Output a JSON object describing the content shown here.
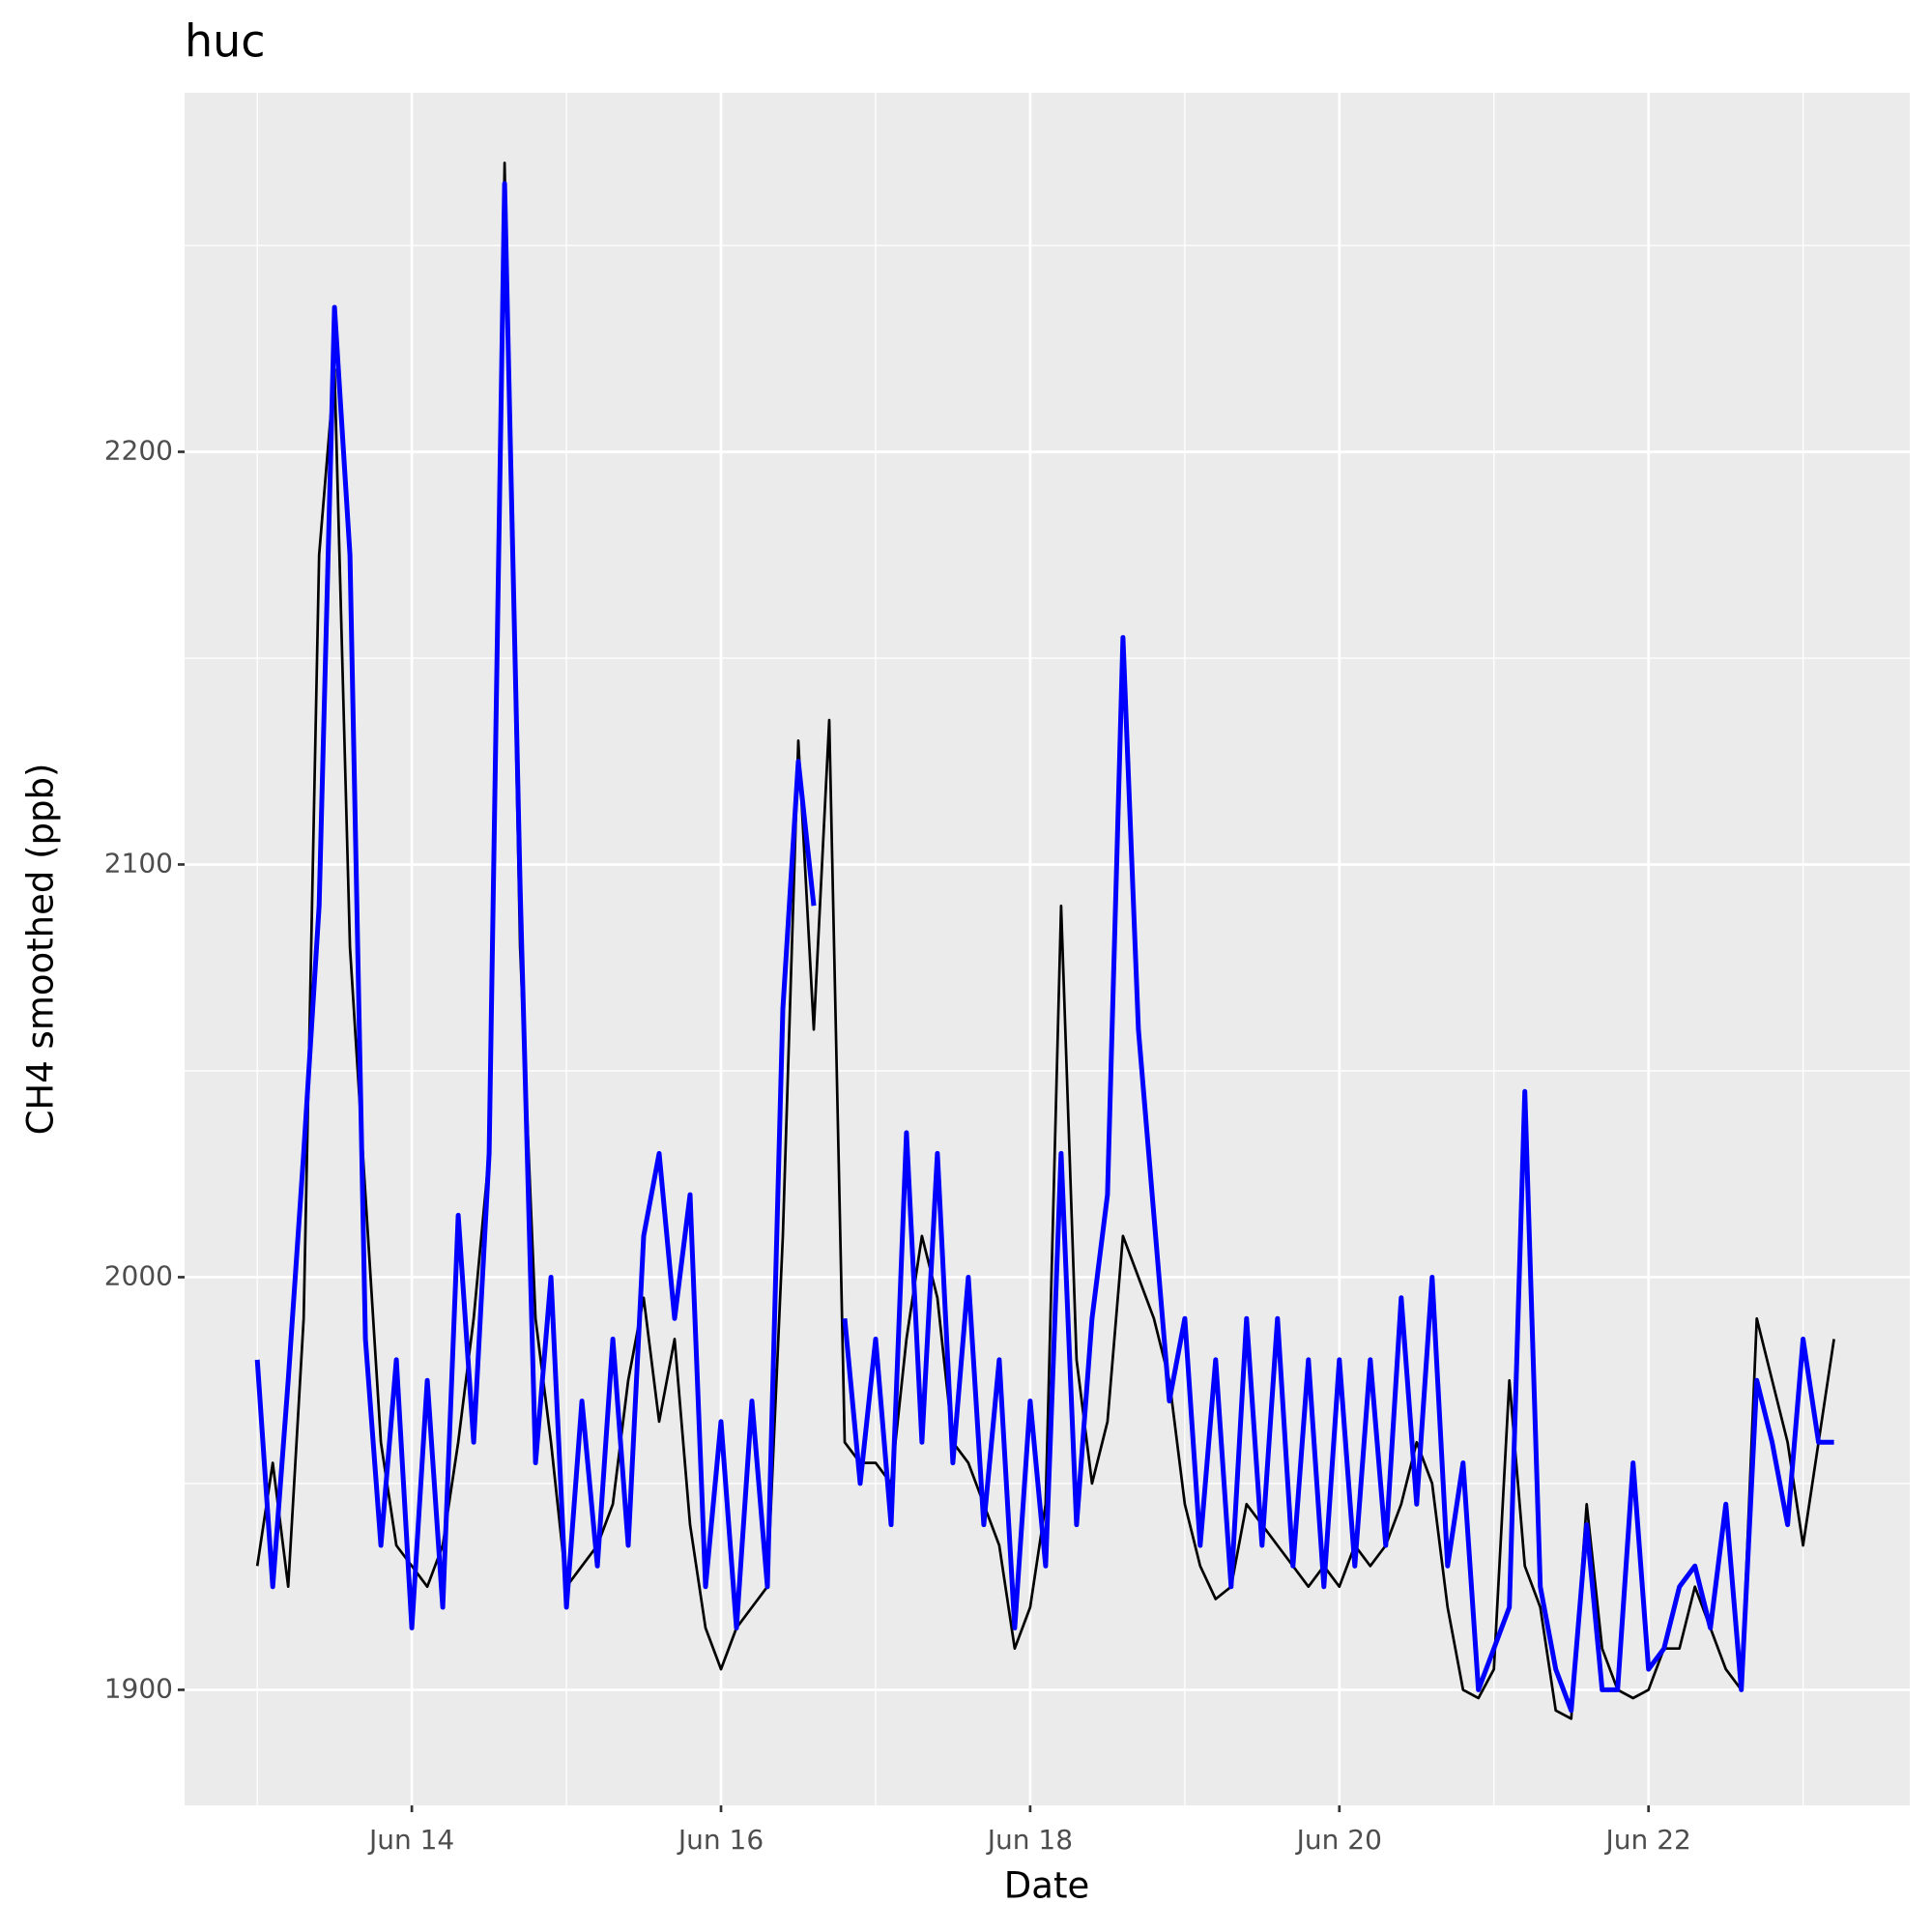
{
  "chart_data": {
    "type": "line",
    "title": "huc",
    "xlabel": "Date",
    "ylabel": "CH4 smoothed (ppb)",
    "x": [
      13.0,
      13.1,
      13.2,
      13.3,
      13.4,
      13.5,
      13.6,
      13.7,
      13.8,
      13.9,
      14.0,
      14.1,
      14.2,
      14.3,
      14.4,
      14.5,
      14.6,
      14.7,
      14.8,
      14.9,
      15.0,
      15.1,
      15.2,
      15.3,
      15.4,
      15.5,
      15.6,
      15.7,
      15.8,
      15.9,
      16.0,
      16.1,
      16.2,
      16.3,
      16.4,
      16.5,
      16.6,
      16.7,
      16.8,
      16.9,
      17.0,
      17.1,
      17.2,
      17.3,
      17.4,
      17.5,
      17.6,
      17.7,
      17.8,
      17.9,
      18.0,
      18.1,
      18.2,
      18.3,
      18.4,
      18.5,
      18.6,
      18.7,
      18.8,
      18.9,
      19.0,
      19.1,
      19.2,
      19.3,
      19.4,
      19.5,
      19.6,
      19.7,
      19.8,
      19.9,
      20.0,
      20.1,
      20.2,
      20.3,
      20.4,
      20.5,
      20.6,
      20.7,
      20.8,
      20.9,
      21.0,
      21.1,
      21.2,
      21.3,
      21.4,
      21.5,
      21.6,
      21.7,
      21.8,
      21.9,
      22.0,
      22.1,
      22.2,
      22.3,
      22.4,
      22.5,
      22.6,
      22.7,
      22.8,
      22.9,
      23.0,
      23.1,
      23.2
    ],
    "series": [
      {
        "color": "#000000",
        "values": [
          1930,
          1955,
          1925,
          1990,
          2175,
          2220,
          2080,
          2020,
          1960,
          1935,
          1930,
          1925,
          1935,
          1960,
          1990,
          2030,
          2270,
          2080,
          1990,
          1960,
          1925,
          1930,
          1935,
          1945,
          1975,
          1995,
          1965,
          1985,
          1940,
          1915,
          1905,
          1915,
          1920,
          1925,
          2010,
          2130,
          2060,
          2135,
          1960,
          1955,
          1955,
          1950,
          1985,
          2010,
          1995,
          1960,
          1955,
          1945,
          1935,
          1910,
          1920,
          1945,
          2090,
          1980,
          1950,
          1965,
          2010,
          2000,
          1990,
          1975,
          1945,
          1930,
          1922,
          1925,
          1945,
          1940,
          1935,
          1930,
          1925,
          1930,
          1925,
          1935,
          1930,
          1935,
          1945,
          1960,
          1950,
          1920,
          1900,
          1898,
          1905,
          1975,
          1930,
          1920,
          1895,
          1893,
          1945,
          1910,
          1900,
          1898,
          1900,
          1910,
          1910,
          1925,
          1915,
          1905,
          1900,
          1990,
          1975,
          1960,
          1935,
          1960,
          1985
        ]
      },
      {
        "color": "#0000ff",
        "values": [
          1980,
          1925,
          1975,
          2030,
          2090,
          2235,
          2175,
          1985,
          1935,
          1980,
          1915,
          1975,
          1920,
          2015,
          1960,
          2030,
          2265,
          2095,
          1955,
          2000,
          1920,
          1970,
          1930,
          1985,
          1935,
          2010,
          2030,
          1990,
          2020,
          1925,
          1965,
          1915,
          1970,
          1925,
          2065,
          2125,
          2090,
          null,
          1990,
          1950,
          1985,
          1940,
          2035,
          1960,
          2030,
          1955,
          2000,
          1940,
          1980,
          1915,
          1970,
          1930,
          2030,
          1940,
          1990,
          2020,
          2155,
          2060,
          2015,
          1970,
          1990,
          1935,
          1980,
          1925,
          1990,
          1935,
          1990,
          1930,
          1980,
          1925,
          1980,
          1930,
          1980,
          1935,
          1995,
          1945,
          2000,
          1930,
          1955,
          1900,
          1910,
          1920,
          2045,
          1925,
          1905,
          1895,
          1940,
          1900,
          1900,
          1955,
          1905,
          1910,
          1925,
          1930,
          1915,
          1945,
          1900,
          1975,
          1960,
          1940,
          1985,
          1960,
          1960
        ]
      }
    ],
    "xlim": [
      12.53,
      23.69
    ],
    "xticks": [
      {
        "value": 14,
        "label": "Jun 14"
      },
      {
        "value": 16,
        "label": "Jun 16"
      },
      {
        "value": 18,
        "label": "Jun 18"
      },
      {
        "value": 20,
        "label": "Jun 20"
      },
      {
        "value": 22,
        "label": "Jun 22"
      }
    ],
    "ylim": [
      1872,
      2287
    ],
    "yticks": [
      1900,
      2000,
      2100,
      2200
    ],
    "grid": true
  }
}
